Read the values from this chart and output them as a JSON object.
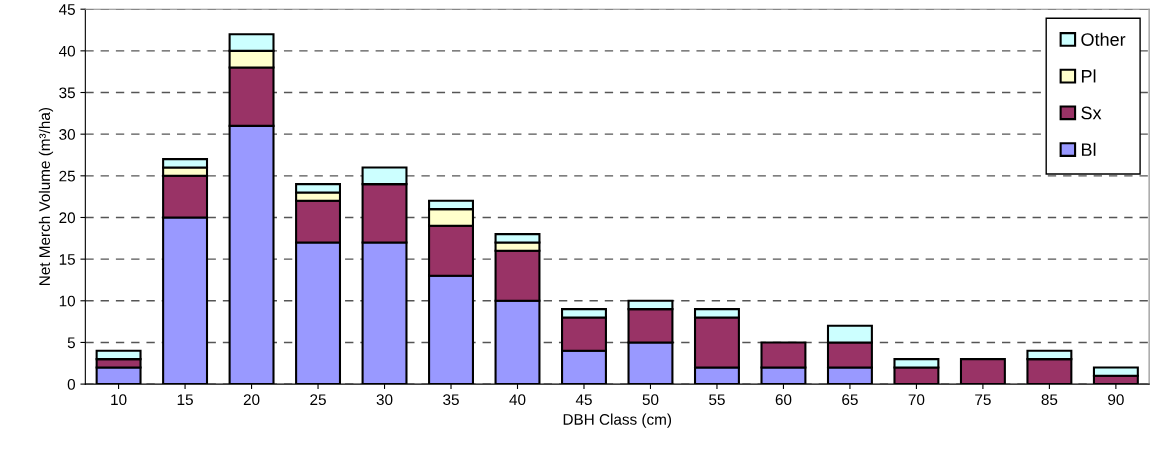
{
  "chart_data": {
    "type": "bar",
    "stacked": true,
    "xlabel": "DBH Class (cm)",
    "ylabel": "Net Merch Volume (m³/ha)",
    "categories": [
      "10",
      "15",
      "20",
      "25",
      "30",
      "35",
      "40",
      "45",
      "50",
      "55",
      "60",
      "65",
      "70",
      "75",
      "85",
      "90"
    ],
    "series": [
      {
        "name": "Bl",
        "color": "#9999ff",
        "values": [
          2,
          20,
          31,
          17,
          17,
          13,
          10,
          4,
          5,
          2,
          2,
          2,
          0,
          0,
          0,
          0
        ]
      },
      {
        "name": "Sx",
        "color": "#993366",
        "values": [
          1,
          5,
          7,
          5,
          7,
          6,
          6,
          4,
          4,
          6,
          3,
          3,
          2,
          3,
          3,
          1
        ]
      },
      {
        "name": "Pl",
        "color": "#ffffcc",
        "values": [
          0,
          1,
          2,
          1,
          0,
          2,
          1,
          0,
          0,
          0,
          0,
          0,
          0,
          0,
          0,
          0
        ]
      },
      {
        "name": "Other",
        "color": "#ccffff",
        "values": [
          1,
          1,
          2,
          1,
          2,
          1,
          1,
          1,
          1,
          1,
          0,
          2,
          1,
          0,
          1,
          1
        ]
      }
    ],
    "ylim": [
      0,
      45
    ],
    "yticks": [
      0,
      5,
      10,
      15,
      20,
      25,
      30,
      35,
      40,
      45
    ],
    "grid": "y",
    "legend": "top right"
  }
}
